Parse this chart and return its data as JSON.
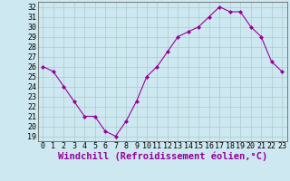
{
  "x": [
    0,
    1,
    2,
    3,
    4,
    5,
    6,
    7,
    8,
    9,
    10,
    11,
    12,
    13,
    14,
    15,
    16,
    17,
    18,
    19,
    20,
    21,
    22,
    23
  ],
  "y": [
    26,
    25.5,
    24,
    22.5,
    21,
    21,
    19.5,
    19,
    20.5,
    22.5,
    25,
    26,
    27.5,
    29,
    29.5,
    30,
    31,
    32,
    31.5,
    31.5,
    30,
    29,
    26.5,
    25.5
  ],
  "line_color": "#990099",
  "marker": "D",
  "marker_size": 2.0,
  "bg_color": "#cde8f0",
  "grid_color": "#aacccc",
  "xlabel": "Windchill (Refroidissement éolien,°C)",
  "xlabel_color": "#990099",
  "yticks": [
    19,
    20,
    21,
    22,
    23,
    24,
    25,
    26,
    27,
    28,
    29,
    30,
    31,
    32
  ],
  "xticks": [
    0,
    1,
    2,
    3,
    4,
    5,
    6,
    7,
    8,
    9,
    10,
    11,
    12,
    13,
    14,
    15,
    16,
    17,
    18,
    19,
    20,
    21,
    22,
    23
  ],
  "ylim": [
    18.5,
    32.5
  ],
  "xlim": [
    -0.5,
    23.5
  ],
  "tick_fontsize": 6,
  "xlabel_fontsize": 7.5
}
